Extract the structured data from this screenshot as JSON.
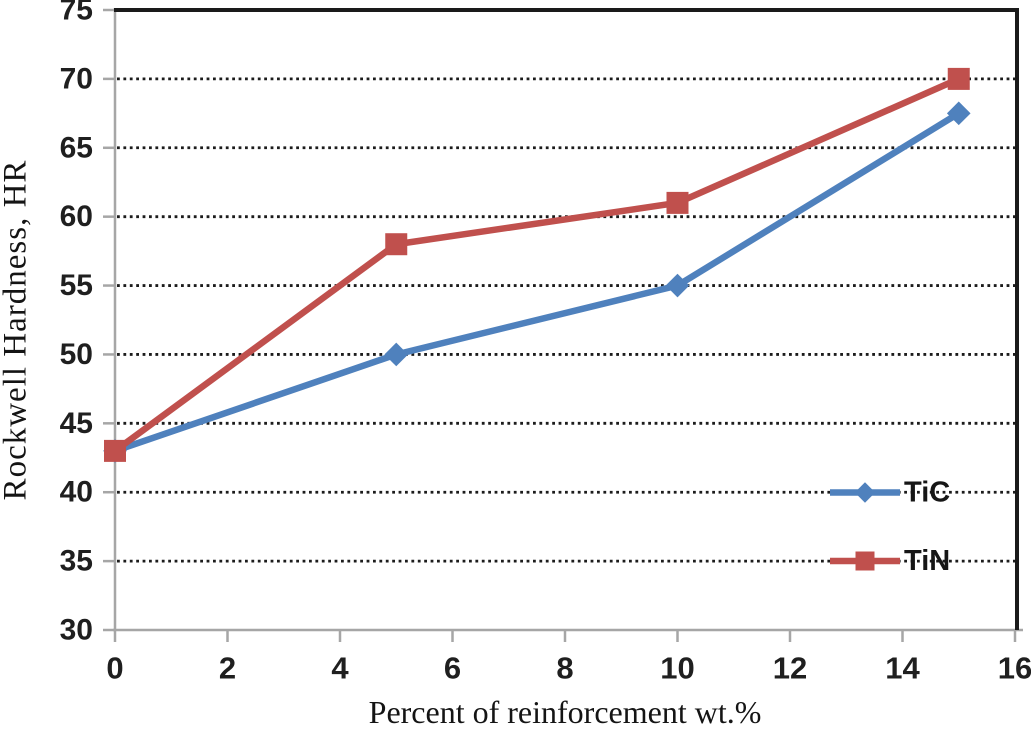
{
  "figure": {
    "background": "#ffffff"
  },
  "chart_data": {
    "type": "line",
    "title": "",
    "xlabel": "Percent of reinforcement wt.%",
    "ylabel": "Rockwell Hardness, HR",
    "x": [
      0,
      5,
      10,
      15
    ],
    "series": [
      {
        "name": "TiC",
        "values": [
          43,
          50,
          55,
          67.5
        ],
        "color": "#4F81BD",
        "marker": "diamond"
      },
      {
        "name": "TiN",
        "values": [
          43,
          58,
          61,
          70
        ],
        "color": "#C0504D",
        "marker": "square"
      }
    ],
    "xlim": [
      0,
      16
    ],
    "ylim": [
      30,
      75
    ],
    "x_ticks": [
      0,
      2,
      4,
      6,
      8,
      10,
      12,
      14,
      16
    ],
    "y_ticks": [
      30,
      35,
      40,
      45,
      50,
      55,
      60,
      65,
      70,
      75
    ],
    "grid": "horizontal-dotted",
    "legend_position": "inside-right",
    "legend": [
      "TiC",
      "TiN"
    ]
  },
  "style": {
    "axis_color": "#a6a6a6",
    "frame_color": "#1a1a1a",
    "grid_color": "#1c1c1c",
    "tick_label_color": "#1f1f1f",
    "axis_title_color": "#141414"
  }
}
